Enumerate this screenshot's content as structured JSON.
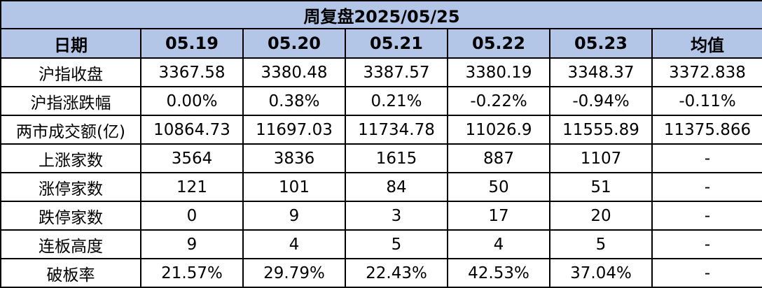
{
  "title": "周复盘2025/05/25",
  "header": [
    "日期",
    "05.19",
    "05.20",
    "05.21",
    "05.22",
    "05.23",
    "均值"
  ],
  "colors": {
    "header_bg": "#b4c6e7",
    "border": "#000000"
  },
  "rows": [
    {
      "label": "沪指收盘",
      "values": [
        "3367.58",
        "3380.48",
        "3387.57",
        "3380.19",
        "3348.37",
        "3372.838"
      ],
      "bold": []
    },
    {
      "label": "沪指涨跌幅",
      "values": [
        "0.00%",
        "0.38%",
        "0.21%",
        "-0.22%",
        "-0.94%",
        "-0.11%"
      ],
      "bold": []
    },
    {
      "label": "两市成交额(亿)",
      "values": [
        "10864.73",
        "11697.03",
        "11734.78",
        "11026.9",
        "11555.89",
        "11375.866"
      ],
      "bold": []
    },
    {
      "label": "上涨家数",
      "values": [
        "3564",
        "3836",
        "1615",
        "887",
        "1107",
        "-"
      ],
      "bold": []
    },
    {
      "label": "涨停家数",
      "values": [
        "121",
        "101",
        "84",
        "50",
        "51",
        "-"
      ],
      "bold": []
    },
    {
      "label": "跌停家数",
      "values": [
        "0",
        "9",
        "3",
        "17",
        "20",
        "-"
      ],
      "bold": [
        5
      ]
    },
    {
      "label": "连板高度",
      "values": [
        "9",
        "4",
        "5",
        "4",
        "5",
        "-"
      ],
      "bold": [
        0,
        4,
        5
      ]
    },
    {
      "label": "破板率",
      "values": [
        "21.57%",
        "29.79%",
        "22.43%",
        "42.53%",
        "37.04%",
        "-"
      ],
      "bold": [
        3,
        4,
        5
      ]
    }
  ]
}
